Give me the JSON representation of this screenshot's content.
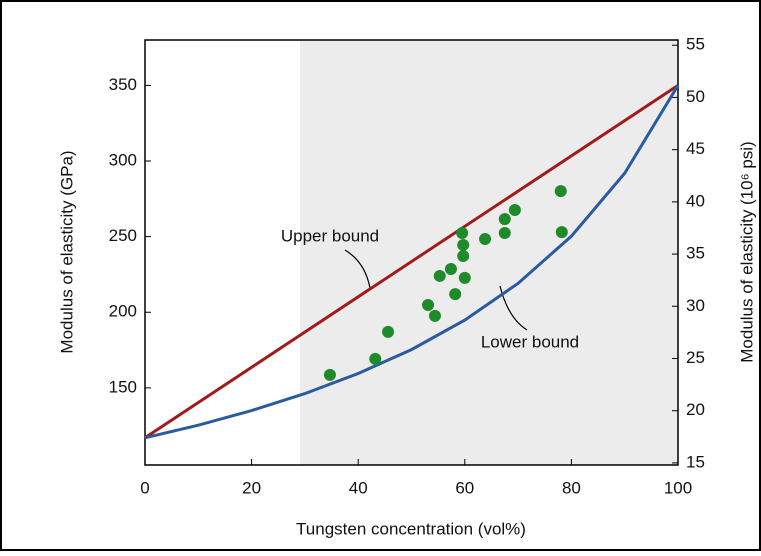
{
  "chart_data": {
    "type": "line",
    "x_label": "Tungsten concentration (vol%)",
    "y_label": "Modulus of elasticity (GPa)",
    "y2_label": "Modulus of elasticity (10⁶ psi)",
    "xlim": [
      0,
      100
    ],
    "xticks": [
      0,
      20,
      40,
      60,
      80,
      100
    ],
    "ylim": [
      99,
      380
    ],
    "yticks": [
      150,
      200,
      250,
      300,
      350
    ],
    "y2lim": [
      14.8,
      55.5
    ],
    "y2ticks": [
      15,
      20,
      25,
      30,
      35,
      40,
      45,
      50,
      55
    ],
    "series": [
      {
        "name": "Upper bound",
        "color": "#a01c1c",
        "mode": "line",
        "x": [
          0,
          100
        ],
        "values": [
          117,
          350
        ]
      },
      {
        "name": "Lower bound",
        "color": "#2a5aa0",
        "mode": "line",
        "x": [
          0,
          10,
          20,
          30,
          40,
          50,
          60,
          70,
          80,
          90,
          100
        ],
        "values": [
          117,
          125.3,
          135,
          146.2,
          159.5,
          175.3,
          194.8,
          219.1,
          250.3,
          291.9,
          350
        ]
      },
      {
        "color": "#1e8a2a",
        "mode": "scatter",
        "x": [
          34.7,
          43.2,
          45.6,
          53.1,
          54.4,
          55.3,
          57.4,
          58.2,
          59.5,
          59.7,
          59.7,
          60.0,
          63.8,
          67.5,
          67.5,
          69.4,
          78.0,
          78.2
        ],
        "values": [
          158.6,
          169.2,
          187,
          204.8,
          197.6,
          224,
          228.6,
          212,
          252.4,
          244.5,
          237.2,
          222.7,
          248.4,
          261.6,
          252.4,
          267.6,
          280.1,
          253
        ]
      }
    ]
  }
}
